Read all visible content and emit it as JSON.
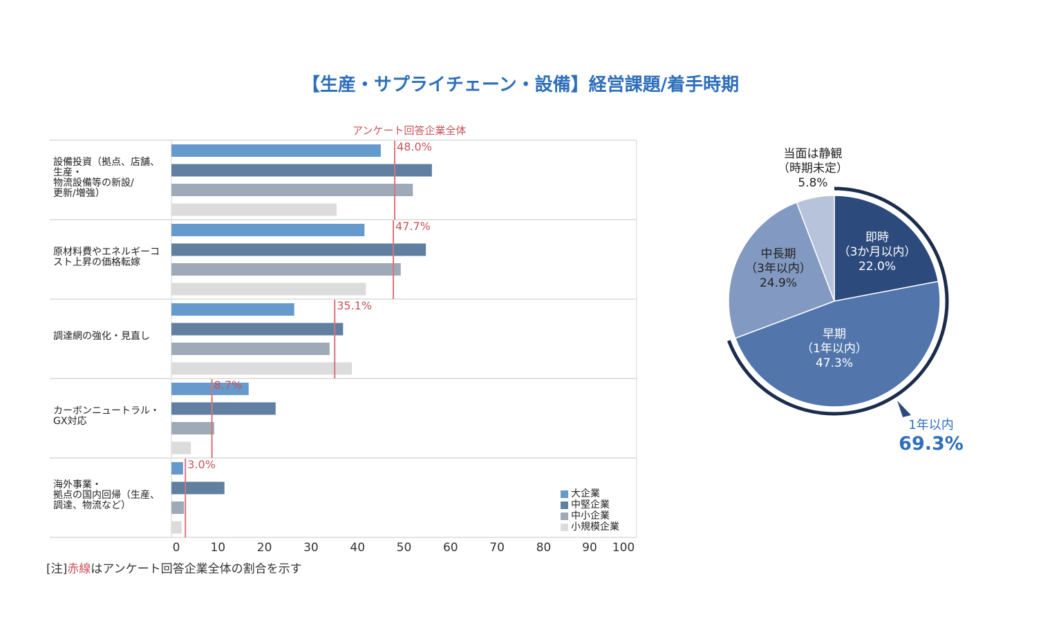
{
  "title": "【生産・サプライチェーン・設備】経営課題/着手時期",
  "note": {
    "prefix": "[注]",
    "red": "赤線",
    "suffix": "はアンケート回答企業全体の割合を示す"
  },
  "colors": {
    "large": "#6699cc",
    "midsize": "#617fa1",
    "sme": "#9eaab8",
    "small": "#dcdcdc",
    "overall_line": "#d9737a",
    "overall_text": "#c9525a",
    "title": "#2e6fba",
    "pie_immediate": "#2c4a7c",
    "pie_early": "#5276ab",
    "pie_midlong": "#8299c1",
    "pie_undecided": "#b6c3da",
    "pie_bracket": "#1b2d4b"
  },
  "chart_data": [
    {
      "type": "bar",
      "orientation": "horizontal",
      "title": "",
      "overall_label": "アンケート回答企業全体",
      "xlabel": "",
      "ylabel": "",
      "xlim": [
        0,
        100
      ],
      "xticks": [
        "0",
        "10",
        "20",
        "30",
        "40",
        "50",
        "60",
        "70",
        "80",
        "90",
        "100"
      ],
      "grid": false,
      "legend_position": "bottom-right",
      "categories": [
        [
          "設備投資（拠点、店舗、",
          "生産・",
          "物流設備等の新設/",
          "更新/増強）"
        ],
        [
          "原材料費やエネルギーコ",
          "スト上昇の価格転嫁"
        ],
        [
          "調達網の強化・見直し"
        ],
        [
          "カーボンニュートラル・",
          "GX対応"
        ],
        [
          "海外事業・",
          "拠点の国内回帰（生産、",
          "調達、物流など）"
        ]
      ],
      "series": [
        {
          "name": "大企業",
          "key": "large",
          "values": [
            45.0,
            41.5,
            26.4,
            16.6,
            2.5
          ]
        },
        {
          "name": "中堅企業",
          "key": "midsize",
          "values": [
            56.0,
            54.7,
            36.9,
            22.4,
            11.4
          ]
        },
        {
          "name": "中小企業",
          "key": "sme",
          "values": [
            51.9,
            49.3,
            34.0,
            9.2,
            2.7
          ]
        },
        {
          "name": "小規模企業",
          "key": "small",
          "values": [
            35.5,
            41.8,
            38.8,
            4.2,
            2.2
          ]
        }
      ],
      "overall": {
        "values": [
          48.0,
          47.7,
          35.1,
          8.7,
          3.0
        ],
        "labels": [
          "48.0%",
          "47.7%",
          "35.1%",
          "8.7%",
          "3.0%"
        ]
      }
    },
    {
      "type": "pie",
      "title": "",
      "slices": [
        {
          "key": "immediate",
          "label": [
            "即時",
            "（3か月以内）"
          ],
          "value": 22.0,
          "text": "22.0%"
        },
        {
          "key": "early",
          "label": [
            "早期",
            "（1年以内）"
          ],
          "value": 47.3,
          "text": "47.3%"
        },
        {
          "key": "midlong",
          "label": [
            "中長期",
            "（3年以内）"
          ],
          "value": 24.9,
          "text": "24.9%"
        },
        {
          "key": "undecided",
          "label": [
            "当面は静観",
            "（時期未定）"
          ],
          "value": 5.8,
          "text": "5.8%"
        }
      ],
      "bracket": {
        "label": "1年以内",
        "value": 69.3,
        "text": "69.3%"
      }
    }
  ]
}
